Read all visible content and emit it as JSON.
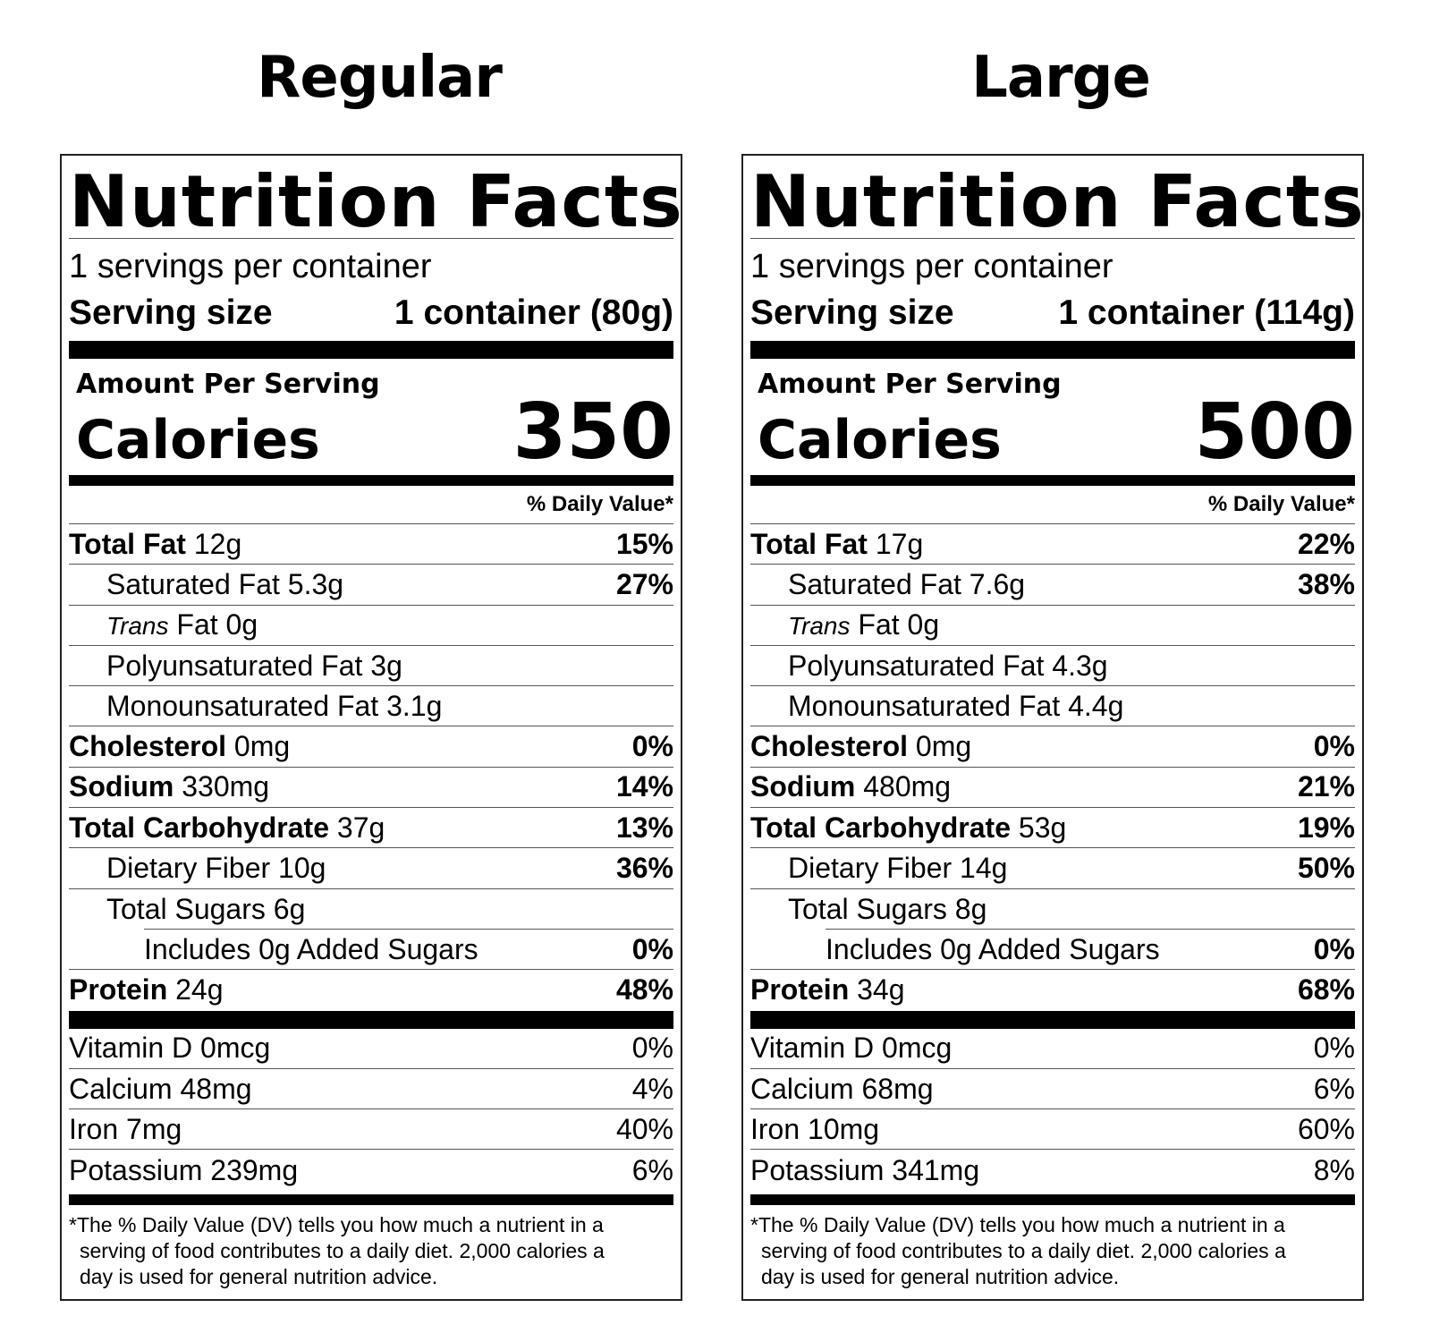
{
  "labels": [
    {
      "size_title": "Regular",
      "heading": "Nutrition Facts",
      "servings_per_container": "1 servings per container",
      "serving_size_label": "Serving size",
      "serving_size_value": "1 container (80g)",
      "amount_per_serving": "Amount Per Serving",
      "calories_label": "Calories",
      "calories_value": "350",
      "daily_value_header": "% Daily Value*",
      "nutrients": [
        {
          "name": "Total Fat",
          "amount": "12g",
          "dv": "15%"
        },
        {
          "name": "Saturated Fat",
          "amount": "5.3g",
          "dv": "27%"
        },
        {
          "name": "Trans",
          "amount": "Fat 0g",
          "dv": ""
        },
        {
          "name": "Polyunsaturated Fat",
          "amount": "3g",
          "dv": ""
        },
        {
          "name": "Monounsaturated Fat",
          "amount": "3.1g",
          "dv": ""
        },
        {
          "name": "Cholesterol",
          "amount": "0mg",
          "dv": "0%"
        },
        {
          "name": "Sodium",
          "amount": "330mg",
          "dv": "14%"
        },
        {
          "name": "Total Carbohydrate",
          "amount": "37g",
          "dv": "13%"
        },
        {
          "name": "Dietary Fiber",
          "amount": "10g",
          "dv": "36%"
        },
        {
          "name": "Total Sugars",
          "amount": "6g",
          "dv": ""
        },
        {
          "name": "Includes 0g Added Sugars",
          "amount": "",
          "dv": "0%"
        },
        {
          "name": "Protein",
          "amount": "24g",
          "dv": "48%"
        }
      ],
      "vitamins": [
        {
          "name": "Vitamin D 0mcg",
          "dv": "0%"
        },
        {
          "name": "Calcium 48mg",
          "dv": "4%"
        },
        {
          "name": "Iron 7mg",
          "dv": "40%"
        },
        {
          "name": "Potassium 239mg",
          "dv": "6%"
        }
      ],
      "footnote_line1": "*The % Daily Value (DV) tells you how much a nutrient in a",
      "footnote_line2": "serving of food contributes to a daily diet. 2,000 calories a",
      "footnote_line3": "day is used for general nutrition advice."
    },
    {
      "size_title": "Large",
      "heading": "Nutrition Facts",
      "servings_per_container": "1 servings per container",
      "serving_size_label": "Serving size",
      "serving_size_value": "1 container (114g)",
      "amount_per_serving": "Amount Per Serving",
      "calories_label": "Calories",
      "calories_value": "500",
      "daily_value_header": "% Daily Value*",
      "nutrients": [
        {
          "name": "Total Fat",
          "amount": "17g",
          "dv": "22%"
        },
        {
          "name": "Saturated Fat",
          "amount": "7.6g",
          "dv": "38%"
        },
        {
          "name": "Trans",
          "amount": "Fat 0g",
          "dv": ""
        },
        {
          "name": "Polyunsaturated Fat",
          "amount": "4.3g",
          "dv": ""
        },
        {
          "name": "Monounsaturated Fat",
          "amount": "4.4g",
          "dv": ""
        },
        {
          "name": "Cholesterol",
          "amount": "0mg",
          "dv": "0%"
        },
        {
          "name": "Sodium",
          "amount": "480mg",
          "dv": "21%"
        },
        {
          "name": "Total Carbohydrate",
          "amount": "53g",
          "dv": "19%"
        },
        {
          "name": "Dietary Fiber",
          "amount": "14g",
          "dv": "50%"
        },
        {
          "name": "Total Sugars",
          "amount": "8g",
          "dv": ""
        },
        {
          "name": "Includes 0g Added Sugars",
          "amount": "",
          "dv": "0%"
        },
        {
          "name": "Protein",
          "amount": "34g",
          "dv": "68%"
        }
      ],
      "vitamins": [
        {
          "name": "Vitamin D 0mcg",
          "dv": "0%"
        },
        {
          "name": "Calcium 68mg",
          "dv": "6%"
        },
        {
          "name": "Iron 10mg",
          "dv": "60%"
        },
        {
          "name": "Potassium 341mg",
          "dv": "8%"
        }
      ],
      "footnote_line1": "*The % Daily Value (DV) tells you how much a nutrient in a",
      "footnote_line2": "serving of food contributes to a daily diet. 2,000 calories a",
      "footnote_line3": "day is used for general nutrition advice."
    }
  ]
}
